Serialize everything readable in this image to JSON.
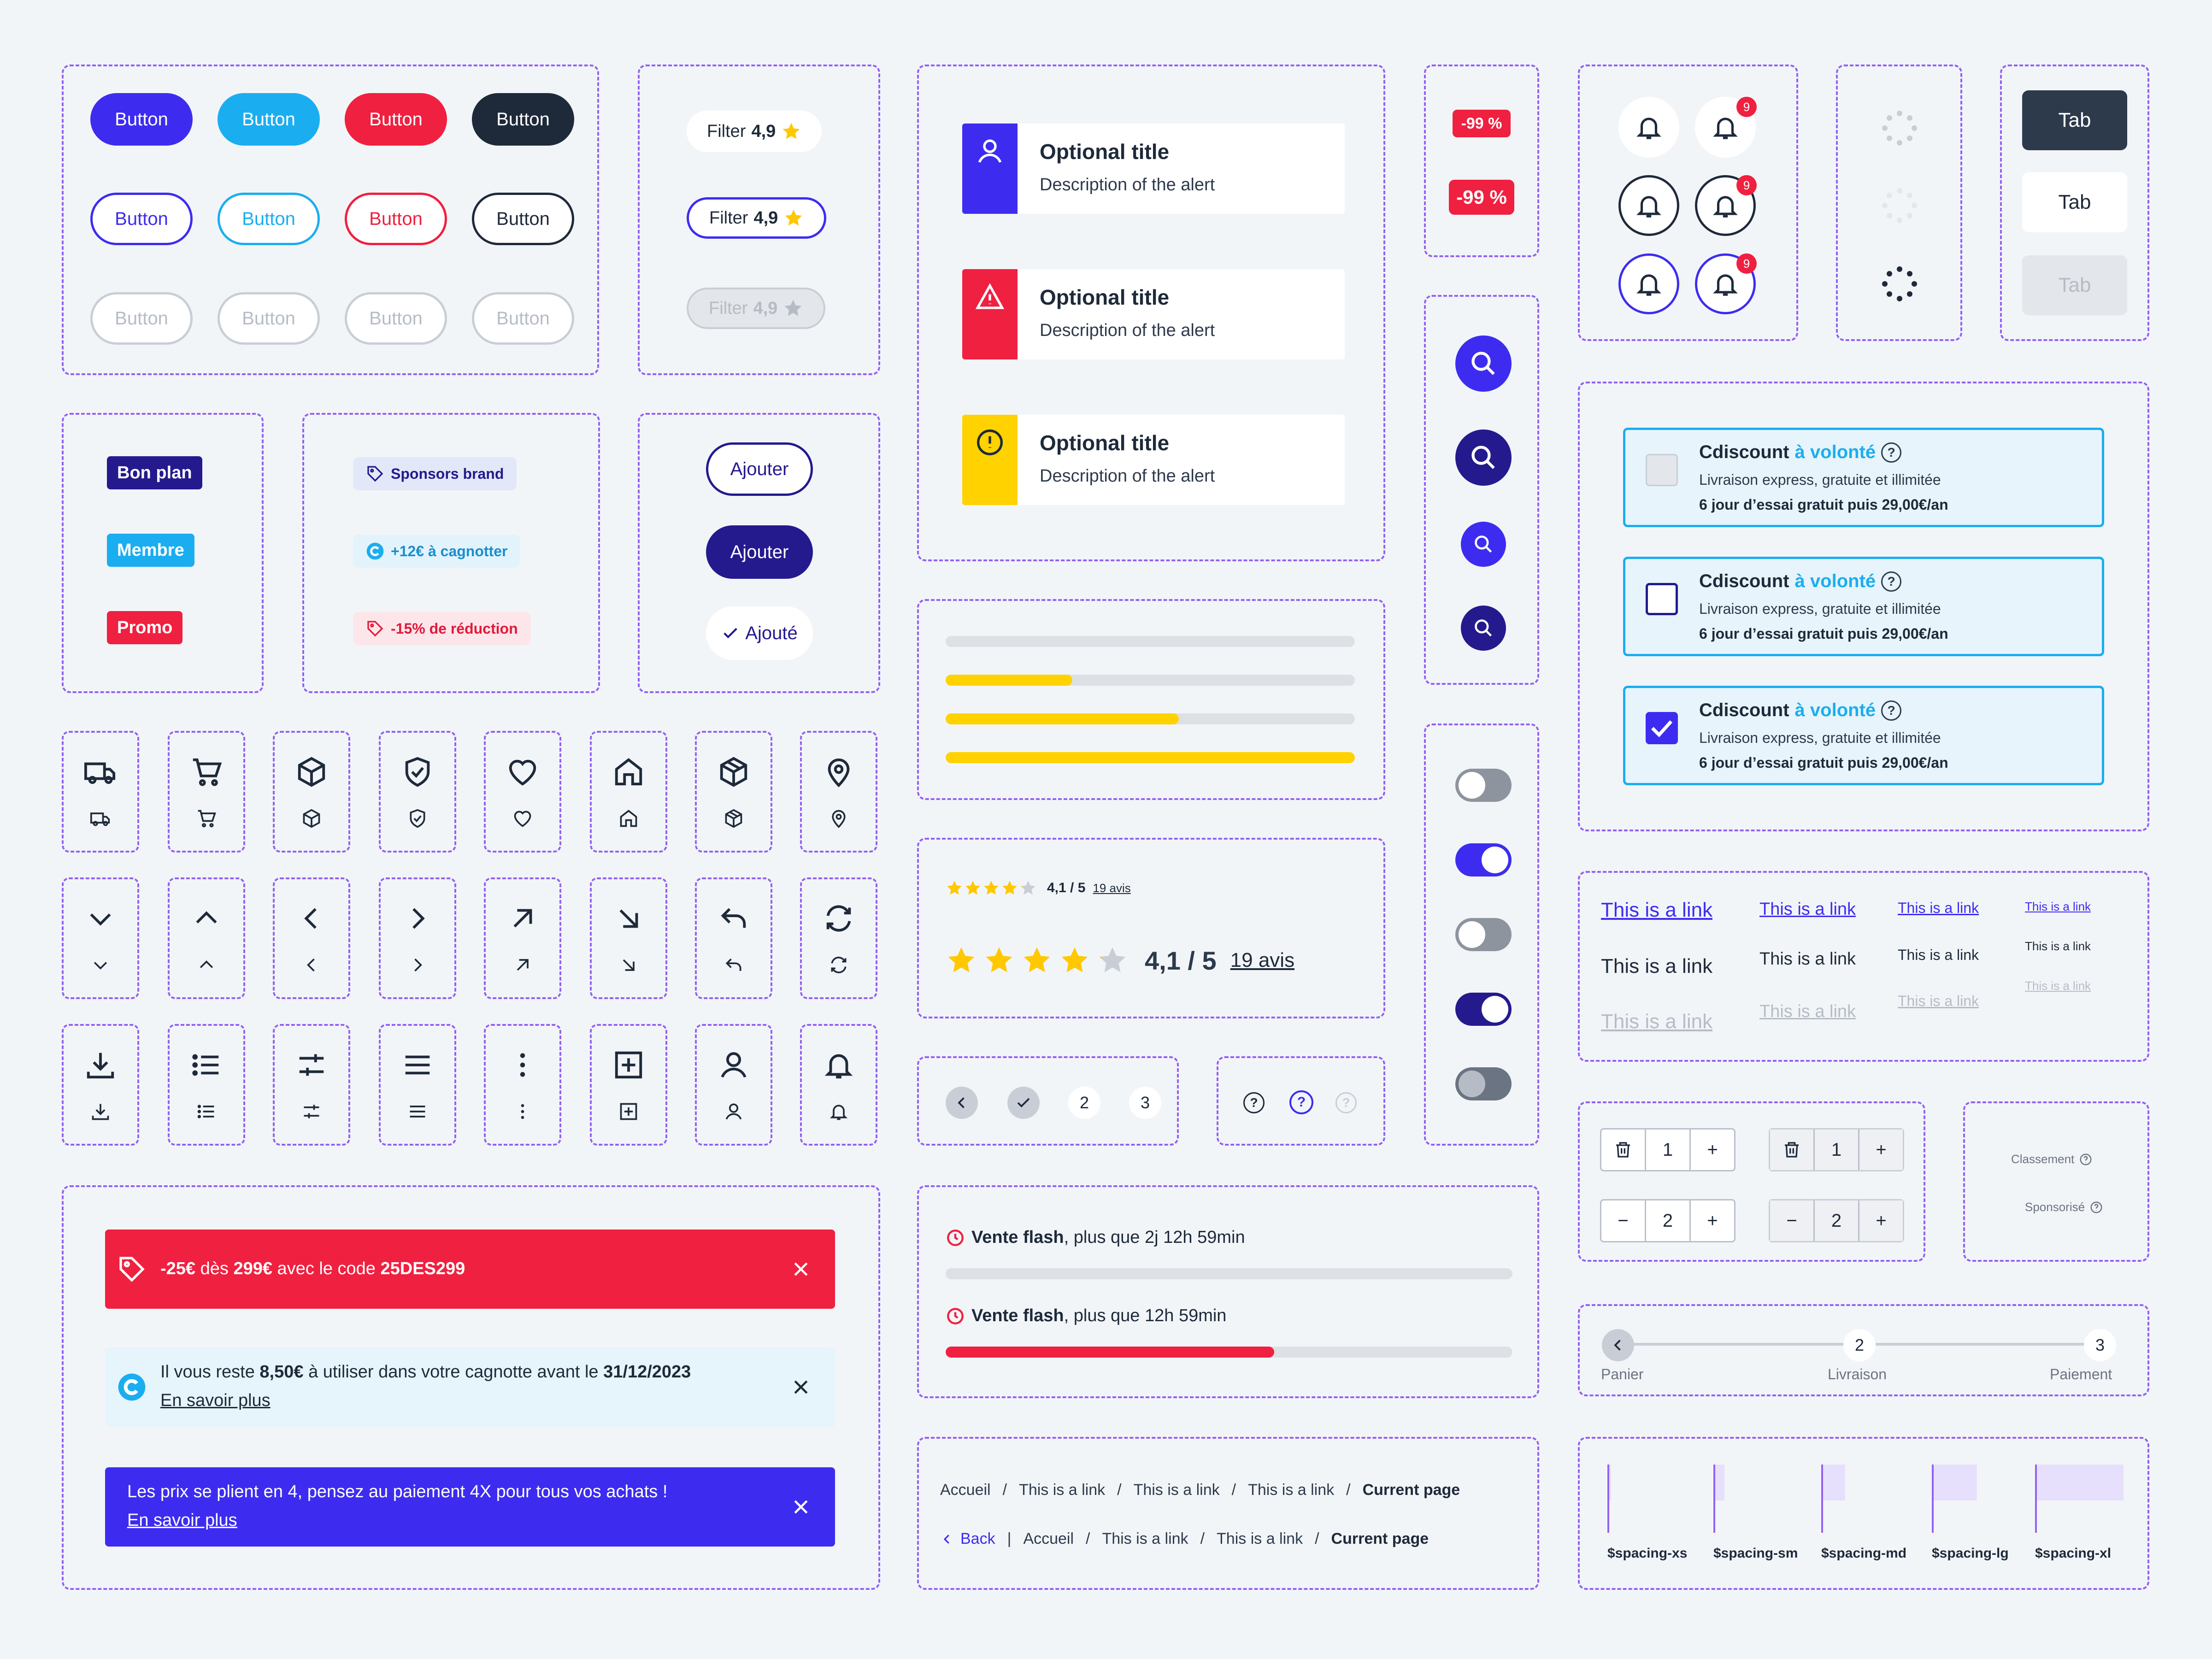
{
  "buttons": {
    "solid": [
      "Button",
      "Button",
      "Button",
      "Button"
    ],
    "outline": [
      "Button",
      "Button",
      "Button",
      "Button"
    ],
    "disabled": [
      "Button",
      "Button",
      "Button",
      "Button"
    ]
  },
  "filters": [
    {
      "label": "Filter",
      "rating": "4,9"
    },
    {
      "label": "Filter",
      "rating": "4,9"
    },
    {
      "label": "Filter",
      "rating": "4,9"
    }
  ],
  "alerts": [
    {
      "title": "Optional title",
      "description": "Description of the alert"
    },
    {
      "title": "Optional title",
      "description": "Description of the alert"
    },
    {
      "title": "Optional title",
      "description": "Description of the alert"
    }
  ],
  "discounts": [
    "-99 %",
    "-99 %"
  ],
  "notification_count": "9",
  "tabs": [
    "Tab",
    "Tab",
    "Tab"
  ],
  "badges": [
    "Bon plan",
    "Membre",
    "Promo"
  ],
  "tags": [
    "Sponsors brand",
    "+12€ à cagnotter",
    "-15% de réduction"
  ],
  "add_buttons": [
    "Ajouter",
    "Ajouter",
    "Ajouté"
  ],
  "progress": [
    0,
    0.31,
    0.57,
    1
  ],
  "rating": {
    "value": "4,1 / 5",
    "reviews": "19 avis",
    "stars": 4.1
  },
  "pagination": [
    "2",
    "3"
  ],
  "help_marks": [
    "?",
    "?",
    "?"
  ],
  "toggles": [
    false,
    true,
    false,
    true,
    false
  ],
  "offers": [
    {
      "brand": "Cdiscount",
      "accent": "à volonté",
      "q": "?",
      "line1": "Livraison express, gratuite et illimitée",
      "line2": "6 jour d’essai gratuit puis 29,00€/an",
      "state": "disabled"
    },
    {
      "brand": "Cdiscount",
      "accent": "à volonté",
      "q": "?",
      "line1": "Livraison express, gratuite et illimitée",
      "line2": "6 jour d’essai gratuit puis 29,00€/an",
      "state": "unchecked"
    },
    {
      "brand": "Cdiscount",
      "accent": "à volonté",
      "q": "?",
      "line1": "Livraison express, gratuite et illimitée",
      "line2": "6 jour d’essai gratuit puis 29,00€/an",
      "state": "checked"
    }
  ],
  "link_text": "This is a link",
  "steppers": [
    {
      "left": "trash",
      "value": "1",
      "right": "+"
    },
    {
      "left": "trash",
      "value": "1",
      "right": "+"
    },
    {
      "left": "−",
      "value": "2",
      "right": "+"
    },
    {
      "left": "−",
      "value": "2",
      "right": "+"
    }
  ],
  "sort": {
    "ranking": "Classement",
    "sponsored": "Sponsorisé"
  },
  "checkout_steps": [
    {
      "num": "",
      "label": "Panier"
    },
    {
      "num": "2",
      "label": "Livraison"
    },
    {
      "num": "3",
      "label": "Paiement"
    }
  ],
  "flash_sales": [
    {
      "title": "Vente flash",
      "rest": ", plus que 2j 12h 59min",
      "progress": 0
    },
    {
      "title": "Vente flash",
      "rest": ", plus que 12h 59min",
      "progress": 0.58
    }
  ],
  "banners": {
    "promo": {
      "pre": "-25€",
      "mid": " dès ",
      "amount": "299€",
      "mid2": " avec le code ",
      "code": "25DES299"
    },
    "cagnotte": {
      "pre": "Il vous reste ",
      "amount": "8,50€",
      "mid": " à utiliser dans votre cagnotte avant le ",
      "date": "31/12/2023",
      "link": "En savoir plus"
    },
    "payment": {
      "text": "Les prix se plient en 4, pensez au paiement 4X pour tous vos achats !",
      "link": "En savoir plus"
    }
  },
  "breadcrumbs": {
    "row1": [
      "Accueil",
      "This is a link",
      "This is a link",
      "This is a link",
      "Current page"
    ],
    "back": "Back",
    "row2": [
      "Accueil",
      "This is a link",
      "This is a link",
      "Current page"
    ]
  },
  "spacing": [
    "$spacing-xs",
    "$spacing-sm",
    "$spacing-md",
    "$spacing-lg",
    "$spacing-xl"
  ],
  "colors": {
    "primary": "#3d2cf0",
    "info": "#1aaef0",
    "danger": "#f02040",
    "dark": "#1e2a3a",
    "warning": "#ffd200",
    "navy": "#241a8e"
  }
}
